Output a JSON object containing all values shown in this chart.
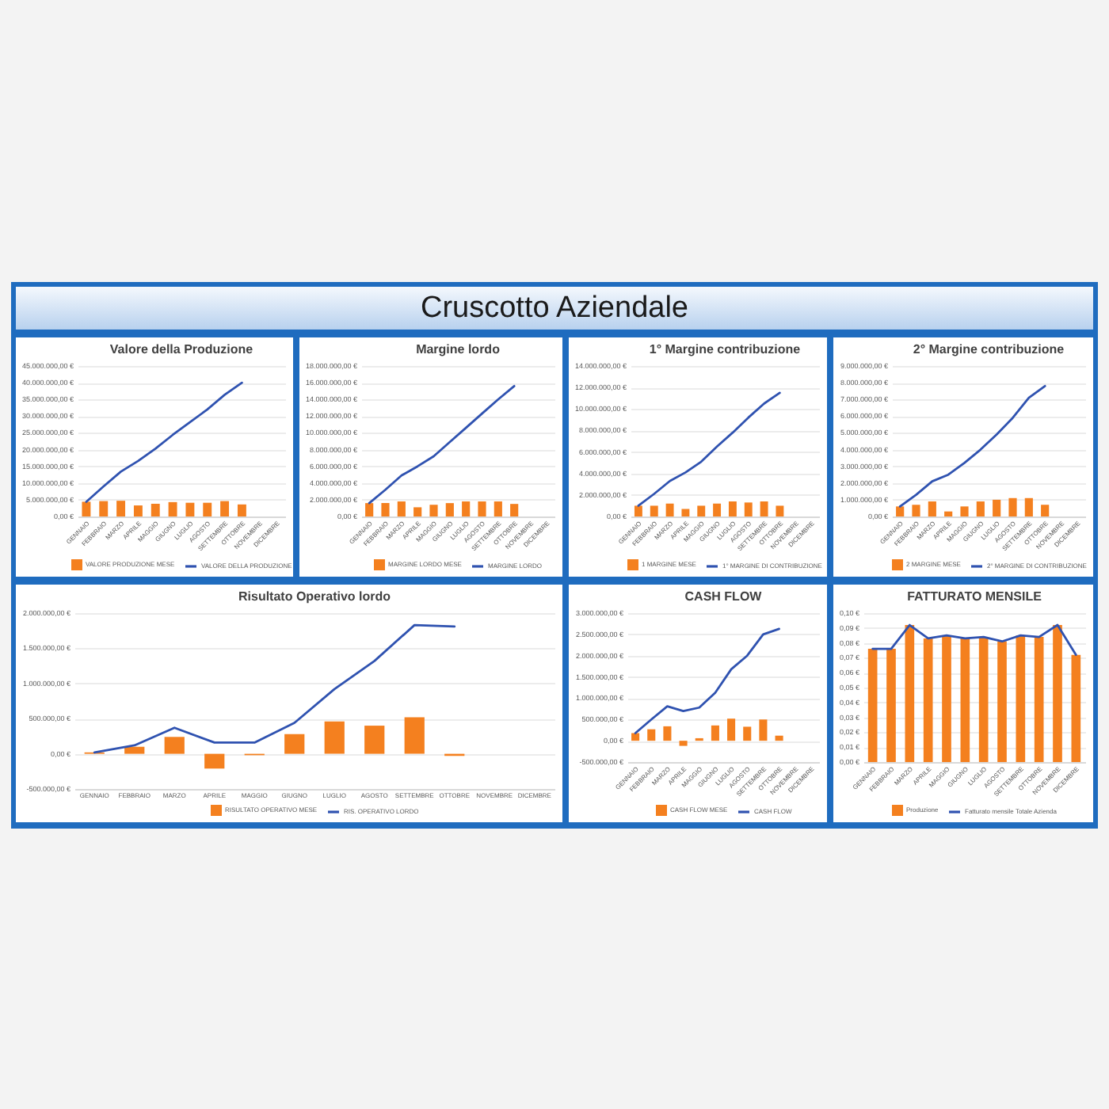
{
  "chart_data": [
    {
      "type": "other",
      "title": "Cruscotto Aziendale"
    },
    {
      "type": "bar",
      "title": "Valore della Produzione",
      "categories": [
        "GENNAIO",
        "FEBBRAIO",
        "MARZO",
        "APRILE",
        "MAGGIO",
        "GIUGNO",
        "LUGLIO",
        "AGOSTO",
        "SETTEMBRE",
        "OTTOBRE",
        "NOVEMBRE",
        "DICEMBRE"
      ],
      "series": [
        {
          "name": "VALORE PRODUZIONE MESE",
          "color": "#f4801f",
          "values": [
            4400000,
            4600000,
            4700000,
            3300000,
            3800000,
            4300000,
            4100000,
            4100000,
            4600000,
            3600000,
            null,
            null
          ]
        },
        {
          "name": "VALORE DELLA PRODUZIONE",
          "color": "#2f52b0",
          "type": "line",
          "values": [
            4400000,
            9000000,
            13400000,
            16600000,
            20300000,
            24400000,
            28200000,
            32000000,
            36400000,
            40000000,
            null,
            null
          ]
        }
      ],
      "ylim": [
        0,
        45000000
      ],
      "yticks": [
        {
          "value": 0,
          "label": "0,00 €"
        },
        {
          "value": 5000000,
          "label": "5.000.000,00 €"
        },
        {
          "value": 10000000,
          "label": "10.000.000,00 €"
        },
        {
          "value": 15000000,
          "label": "15.000.000,00 €"
        },
        {
          "value": 20000000,
          "label": "20.000.000,00 €"
        },
        {
          "value": 25000000,
          "label": "25.000.000,00 €"
        },
        {
          "value": 30000000,
          "label": "30.000.000,00 €"
        },
        {
          "value": 35000000,
          "label": "35.000.000,00 €"
        },
        {
          "value": 40000000,
          "label": "40.000.000,00 €"
        },
        {
          "value": 45000000,
          "label": "45.000.000,00 €"
        }
      ],
      "grid": "y",
      "legend": "bottom"
    },
    {
      "type": "bar",
      "title": "Margine lordo",
      "categories": [
        "GENNAIO",
        "FEBBRAIO",
        "MARZO",
        "APRILE",
        "MAGGIO",
        "GIUGNO",
        "LUGLIO",
        "AGOSTO",
        "SETTEMBRE",
        "OTTOBRE",
        "NOVEMBRE",
        "DICEMBRE"
      ],
      "series": [
        {
          "name": "MARGINE LORDO MESE",
          "color": "#f4801f",
          "values": [
            1600000,
            1600000,
            1800000,
            1100000,
            1400000,
            1600000,
            1800000,
            1800000,
            1800000,
            1500000,
            null,
            null
          ]
        },
        {
          "name": "MARGINE LORDO",
          "color": "#2f52b0",
          "type": "line",
          "values": [
            1600000,
            3200000,
            4900000,
            6000000,
            7200000,
            8900000,
            10600000,
            12300000,
            14000000,
            15600000,
            null,
            null
          ]
        }
      ],
      "ylim": [
        0,
        18000000
      ],
      "yticks": [
        {
          "value": 0,
          "label": "0,00 €"
        },
        {
          "value": 2000000,
          "label": "2.000.000,00 €"
        },
        {
          "value": 4000000,
          "label": "4.000.000,00 €"
        },
        {
          "value": 6000000,
          "label": "6.000.000,00 €"
        },
        {
          "value": 8000000,
          "label": "8.000.000,00 €"
        },
        {
          "value": 10000000,
          "label": "10.000.000,00 €"
        },
        {
          "value": 12000000,
          "label": "12.000.000,00 €"
        },
        {
          "value": 14000000,
          "label": "14.000.000,00 €"
        },
        {
          "value": 16000000,
          "label": "16.000.000,00 €"
        },
        {
          "value": 18000000,
          "label": "18.000.000,00 €"
        }
      ],
      "grid": "y",
      "legend": "bottom"
    },
    {
      "type": "bar",
      "title": "1° Margine contribuzione",
      "categories": [
        "GENNAIO",
        "FEBBRAIO",
        "MARZO",
        "APRILE",
        "MAGGIO",
        "GIUGNO",
        "LUGLIO",
        "AGOSTO",
        "SETTEMBRE",
        "OTTOBRE",
        "NOVEMBRE",
        "DICEMBRE"
      ],
      "series": [
        {
          "name": "1 MARGINE MESE",
          "color": "#f4801f",
          "values": [
            1000000,
            1000000,
            1200000,
            700000,
            1000000,
            1200000,
            1400000,
            1300000,
            1400000,
            1000000,
            null,
            null
          ]
        },
        {
          "name": "1° MARGINE DI CONTRIBUZIONE",
          "color": "#2f52b0",
          "type": "line",
          "values": [
            1000000,
            2100000,
            3300000,
            4100000,
            5100000,
            6500000,
            7800000,
            9200000,
            10500000,
            11500000,
            null,
            null
          ]
        }
      ],
      "ylim": [
        0,
        14000000
      ],
      "yticks": [
        {
          "value": 0,
          "label": "0,00 €"
        },
        {
          "value": 2000000,
          "label": "2.000.000,00 €"
        },
        {
          "value": 4000000,
          "label": "4.000.000,00 €"
        },
        {
          "value": 6000000,
          "label": "6.000.000,00 €"
        },
        {
          "value": 8000000,
          "label": "8.000.000,00 €"
        },
        {
          "value": 10000000,
          "label": "10.000.000,00 €"
        },
        {
          "value": 12000000,
          "label": "12.000.000,00 €"
        },
        {
          "value": 14000000,
          "label": "14.000.000,00 €"
        }
      ],
      "grid": "y",
      "legend": "bottom"
    },
    {
      "type": "bar",
      "title": "2° Margine contribuzione",
      "categories": [
        "GENNAIO",
        "FEBBRAIO",
        "MARZO",
        "APRILE",
        "MAGGIO",
        "GIUGNO",
        "LUGLIO",
        "AGOSTO",
        "SETTEMBRE",
        "OTTOBRE",
        "NOVEMBRE",
        "DICEMBRE"
      ],
      "series": [
        {
          "name": "2 MARGINE MESE",
          "color": "#f4801f",
          "values": [
            600000,
            700000,
            900000,
            300000,
            600000,
            900000,
            1000000,
            1100000,
            1100000,
            700000,
            null,
            null
          ]
        },
        {
          "name": "2° MARGINE DI CONTRIBUZIONE",
          "color": "#2f52b0",
          "type": "line",
          "values": [
            600000,
            1300000,
            2100000,
            2500000,
            3200000,
            4000000,
            4900000,
            5900000,
            7100000,
            7800000,
            null,
            null
          ]
        }
      ],
      "ylim": [
        0,
        9000000
      ],
      "yticks": [
        {
          "value": 0,
          "label": "0,00 €"
        },
        {
          "value": 1000000,
          "label": "1.000.000,00 €"
        },
        {
          "value": 2000000,
          "label": "2.000.000,00 €"
        },
        {
          "value": 3000000,
          "label": "3.000.000,00 €"
        },
        {
          "value": 4000000,
          "label": "4.000.000,00 €"
        },
        {
          "value": 5000000,
          "label": "5.000.000,00 €"
        },
        {
          "value": 6000000,
          "label": "6.000.000,00 €"
        },
        {
          "value": 7000000,
          "label": "7.000.000,00 €"
        },
        {
          "value": 8000000,
          "label": "8.000.000,00 €"
        },
        {
          "value": 9000000,
          "label": "9.000.000,00 €"
        }
      ],
      "grid": "y",
      "legend": "bottom"
    },
    {
      "type": "bar",
      "title": "Risultato Operativo lordo",
      "categories": [
        "GENNAIO",
        "FEBBRAIO",
        "MARZO",
        "APRILE",
        "MAGGIO",
        "GIUGNO",
        "LUGLIO",
        "AGOSTO",
        "SETTEMBRE",
        "OTTOBRE",
        "NOVEMBRE",
        "DICEMBRE"
      ],
      "series": [
        {
          "name": "RISULTATO OPERATIVO MESE",
          "color": "#f4801f",
          "values": [
            20000,
            100000,
            240000,
            -210000,
            -20000,
            280000,
            460000,
            400000,
            520000,
            -30000,
            null,
            null
          ]
        },
        {
          "name": "RIS. OPERATIVO LORDO",
          "color": "#2f52b0",
          "type": "line",
          "values": [
            20000,
            120000,
            370000,
            160000,
            160000,
            440000,
            920000,
            1320000,
            1830000,
            1810000,
            null,
            null
          ]
        }
      ],
      "ylim": [
        -500000,
        2000000
      ],
      "yticks": [
        {
          "value": -500000,
          "label": "-500.000,00 €"
        },
        {
          "value": 0,
          "label": "0,00 €"
        },
        {
          "value": 500000,
          "label": "500.000,00 €"
        },
        {
          "value": 1000000,
          "label": "1.000.000,00 €"
        },
        {
          "value": 1500000,
          "label": "1.500.000,00 €"
        },
        {
          "value": 2000000,
          "label": "2.000.000,00 €"
        }
      ],
      "grid": "y",
      "legend": "bottom"
    },
    {
      "type": "bar",
      "title": "CASH FLOW",
      "categories": [
        "GENNAIO",
        "FEBBRAIO",
        "MARZO",
        "APRILE",
        "MAGGIO",
        "GIUGNO",
        "LUGLIO",
        "AGOSTO",
        "SETTEMBRE",
        "OTTOBRE",
        "NOVEMBRE",
        "DICEMBRE"
      ],
      "series": [
        {
          "name": "CASH FLOW MESE",
          "color": "#f4801f",
          "values": [
            180000,
            270000,
            340000,
            -120000,
            60000,
            360000,
            520000,
            330000,
            500000,
            120000,
            null,
            null
          ]
        },
        {
          "name": "CASH FLOW",
          "color": "#2f52b0",
          "type": "line",
          "values": [
            180000,
            500000,
            810000,
            700000,
            780000,
            1130000,
            1680000,
            2000000,
            2500000,
            2630000,
            null,
            null
          ]
        }
      ],
      "ylim": [
        -500000,
        3000000
      ],
      "yticks": [
        {
          "value": -500000,
          "label": "-500.000,00 €"
        },
        {
          "value": 0,
          "label": "0,00 €"
        },
        {
          "value": 500000,
          "label": "500.000,00 €"
        },
        {
          "value": 1000000,
          "label": "1.000.000,00 €"
        },
        {
          "value": 1500000,
          "label": "1.500.000,00 €"
        },
        {
          "value": 2000000,
          "label": "2.000.000,00 €"
        },
        {
          "value": 2500000,
          "label": "2.500.000,00 €"
        },
        {
          "value": 3000000,
          "label": "3.000.000,00 €"
        }
      ],
      "grid": "y",
      "legend": "bottom"
    },
    {
      "type": "bar",
      "title": "FATTURATO MENSILE",
      "categories": [
        "GENNAIO",
        "FEBBRAIO",
        "MARZO",
        "APRILE",
        "MAGGIO",
        "GIUGNO",
        "LUGLIO",
        "AGOSTO",
        "SETTEMBRE",
        "OTTOBRE",
        "NOVEMBRE",
        "DICEMBRE"
      ],
      "series": [
        {
          "name": "Produzione",
          "color": "#f4801f",
          "values": [
            0.076,
            0.076,
            0.092,
            0.083,
            0.085,
            0.083,
            0.084,
            0.081,
            0.085,
            0.084,
            0.092,
            0.072
          ]
        },
        {
          "name": "Fatturato mensile Totale Azienda",
          "color": "#2f52b0",
          "type": "line",
          "values": [
            0.076,
            0.076,
            0.092,
            0.083,
            0.085,
            0.083,
            0.084,
            0.081,
            0.085,
            0.084,
            0.092,
            0.072
          ]
        }
      ],
      "ylim": [
        0,
        0.1
      ],
      "yticks": [
        {
          "value": 0,
          "label": "0,00 €"
        },
        {
          "value": 0.01,
          "label": "0,01 €"
        },
        {
          "value": 0.02,
          "label": "0,02 €"
        },
        {
          "value": 0.03,
          "label": "0,03 €"
        },
        {
          "value": 0.04,
          "label": "0,04 €"
        },
        {
          "value": 0.05,
          "label": "0,05 €"
        },
        {
          "value": 0.06,
          "label": "0,06 €"
        },
        {
          "value": 0.07,
          "label": "0,07 €"
        },
        {
          "value": 0.08,
          "label": "0,08 €"
        },
        {
          "value": 0.09,
          "label": "0,09 €"
        },
        {
          "value": 0.1,
          "label": "0,10 €"
        }
      ],
      "grid": "y",
      "legend": "bottom"
    }
  ]
}
